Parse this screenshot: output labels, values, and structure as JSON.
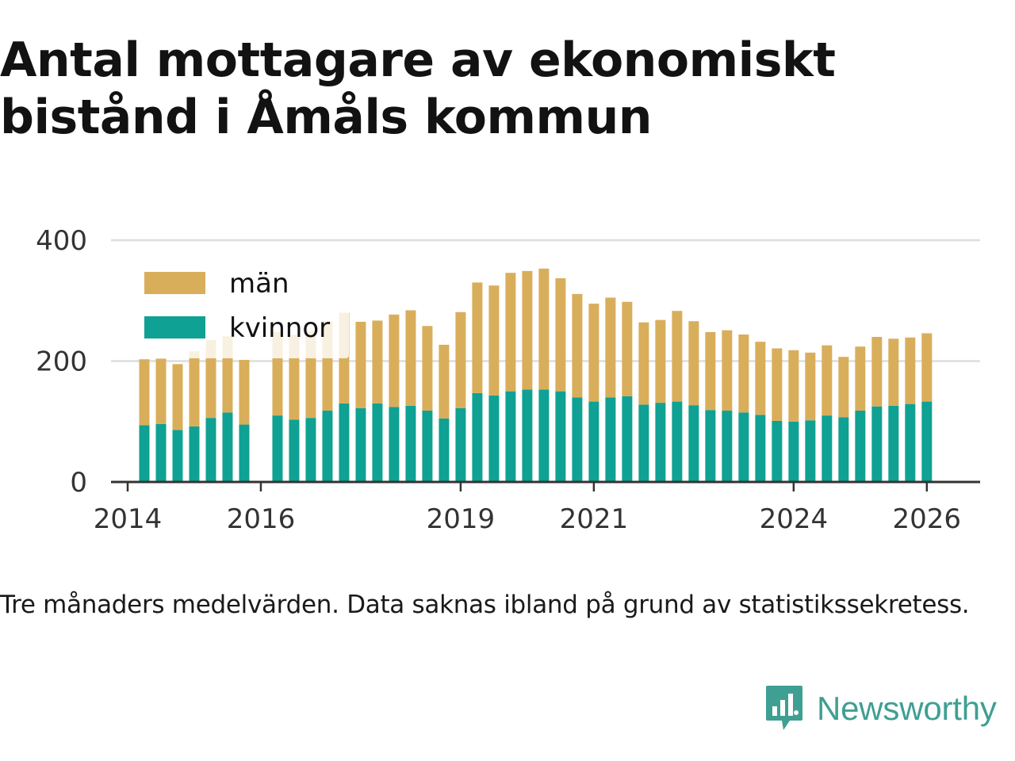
{
  "title": "Antal mottagare av ekonomiskt bistånd i Åmåls kommun",
  "caption": "Tre månaders medelvärden. Data saknas ibland på grund av statistikssekretess.",
  "brand": {
    "name": "Newsworthy",
    "icon": "newsworthy-logo-icon",
    "color": "#3f9f92"
  },
  "colors": {
    "man": "#d9ae5b",
    "kvinnor": "#0fa193",
    "grid": "#dddddd",
    "axis": "#333333"
  },
  "chart_data": {
    "type": "bar",
    "stacked": true,
    "title": "Antal mottagare av ekonomiskt bistånd i Åmåls kommun",
    "xlabel": "",
    "ylabel": "",
    "ylim": [
      0,
      400
    ],
    "xlim": [
      2013.75,
      2026.8
    ],
    "y_ticks": [
      "0",
      "200",
      "400"
    ],
    "x_ticks": [
      "2014",
      "2016",
      "2019",
      "2021",
      "2024",
      "2026"
    ],
    "grid": true,
    "legend_position": "top-left",
    "legend": [
      "män",
      "kvinnor"
    ],
    "x": [
      2014.25,
      2014.5,
      2014.75,
      2015.0,
      2015.25,
      2015.5,
      2015.75,
      2016.25,
      2016.5,
      2016.75,
      2017.0,
      2017.25,
      2017.5,
      2017.75,
      2018.0,
      2018.25,
      2018.5,
      2018.75,
      2019.0,
      2019.25,
      2019.5,
      2019.75,
      2020.0,
      2020.25,
      2020.5,
      2020.75,
      2021.0,
      2021.25,
      2021.5,
      2021.75,
      2022.0,
      2022.25,
      2022.5,
      2022.75,
      2023.0,
      2023.25,
      2023.5,
      2023.75,
      2024.0,
      2024.25,
      2024.5,
      2024.75,
      2025.0,
      2025.25,
      2025.5,
      2025.75,
      2026.0
    ],
    "series": [
      {
        "name": "kvinnor",
        "color": "#0fa193",
        "values": [
          94,
          96,
          86,
          92,
          106,
          115,
          95,
          110,
          103,
          106,
          118,
          130,
          122,
          130,
          124,
          126,
          118,
          105,
          122,
          147,
          143,
          150,
          153,
          153,
          150,
          140,
          133,
          140,
          142,
          128,
          131,
          133,
          127,
          119,
          118,
          115,
          111,
          101,
          100,
          102,
          110,
          107,
          118,
          125,
          126,
          129,
          133
        ]
      },
      {
        "name": "män",
        "color": "#d9ae5b",
        "values": [
          109,
          108,
          109,
          124,
          129,
          126,
          107,
          138,
          140,
          144,
          148,
          150,
          143,
          137,
          153,
          158,
          140,
          122,
          159,
          183,
          182,
          196,
          196,
          200,
          187,
          171,
          162,
          165,
          156,
          136,
          137,
          150,
          139,
          129,
          133,
          129,
          121,
          120,
          118,
          112,
          116,
          100,
          106,
          115,
          111,
          110,
          113
        ]
      }
    ]
  }
}
